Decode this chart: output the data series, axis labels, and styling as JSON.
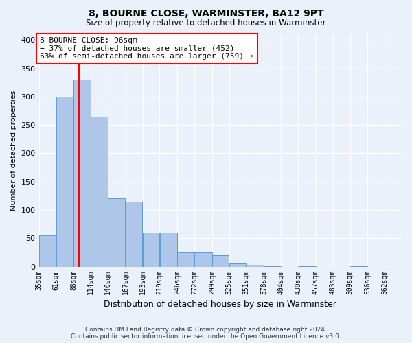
{
  "title1": "8, BOURNE CLOSE, WARMINSTER, BA12 9PT",
  "title2": "Size of property relative to detached houses in Warminster",
  "xlabel": "Distribution of detached houses by size in Warminster",
  "ylabel": "Number of detached properties",
  "footnote": "Contains HM Land Registry data © Crown copyright and database right 2024.\nContains public sector information licensed under the Open Government Licence v3.0.",
  "bar_left_edges": [
    35,
    61,
    88,
    114,
    140,
    167,
    193,
    219,
    246,
    272,
    299,
    325,
    351,
    378,
    404,
    430,
    457,
    483,
    509,
    536
  ],
  "bar_widths": [
    26,
    27,
    26,
    26,
    27,
    26,
    26,
    27,
    26,
    27,
    26,
    26,
    27,
    26,
    26,
    27,
    26,
    26,
    27,
    26
  ],
  "bar_heights": [
    55,
    300,
    330,
    265,
    120,
    115,
    60,
    60,
    25,
    25,
    20,
    5,
    3,
    1,
    0,
    1,
    0,
    0,
    1,
    0
  ],
  "tick_labels": [
    "35sqm",
    "61sqm",
    "88sqm",
    "114sqm",
    "140sqm",
    "167sqm",
    "193sqm",
    "219sqm",
    "246sqm",
    "272sqm",
    "299sqm",
    "325sqm",
    "351sqm",
    "378sqm",
    "404sqm",
    "430sqm",
    "457sqm",
    "483sqm",
    "509sqm",
    "536sqm",
    "562sqm"
  ],
  "bar_color": "#aec6e8",
  "bar_edge_color": "#5b9bd5",
  "red_line_x": 96,
  "annotation_text": "8 BOURNE CLOSE: 96sqm\n← 37% of detached houses are smaller (452)\n63% of semi-detached houses are larger (759) →",
  "annotation_box_color": "white",
  "annotation_box_edge": "red",
  "background_color": "#eaf1fb",
  "axes_facecolor": "#eaf1fb",
  "grid_color": "white",
  "xlim": [
    35,
    588
  ],
  "ylim": [
    0,
    410
  ],
  "yticks": [
    0,
    50,
    100,
    150,
    200,
    250,
    300,
    350,
    400
  ]
}
